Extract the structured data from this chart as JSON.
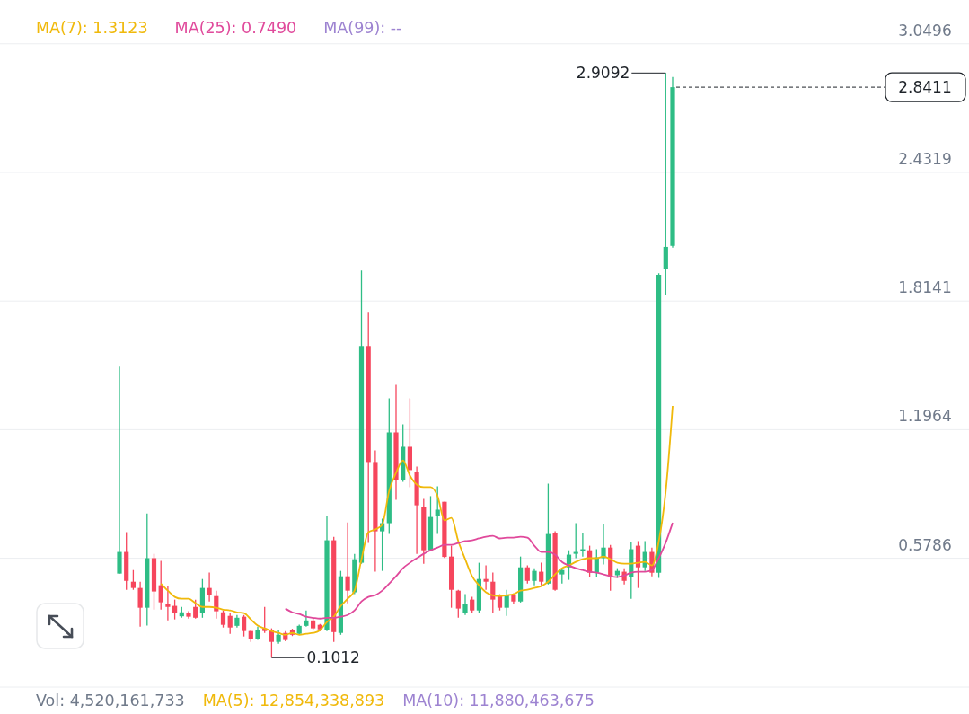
{
  "chart_data": {
    "type": "candlestick",
    "categories": [
      null,
      null,
      null,
      null,
      null,
      null,
      null,
      null,
      null,
      null,
      null,
      null,
      null,
      null,
      null,
      null,
      null,
      null,
      null,
      null,
      null,
      null,
      null,
      null,
      null,
      null,
      null,
      null,
      null,
      null,
      null,
      null,
      null,
      null,
      null,
      null,
      null,
      null,
      null,
      null,
      null,
      null,
      null,
      null,
      null,
      null,
      null,
      null,
      null,
      null,
      null,
      null,
      null,
      null,
      null,
      null,
      null,
      null,
      null,
      null,
      null,
      null,
      null,
      null,
      null,
      null,
      null,
      null,
      null,
      null,
      null,
      null,
      null,
      null,
      null,
      null,
      null,
      null,
      null,
      null,
      null
    ],
    "ohlc": [
      [
        0.505,
        1.499,
        0.505,
        0.609
      ],
      [
        0.609,
        0.704,
        0.427,
        0.47
      ],
      [
        0.466,
        0.522,
        0.427,
        0.436
      ],
      [
        0.436,
        0.466,
        0.25,
        0.341
      ],
      [
        0.341,
        0.794,
        0.255,
        0.579
      ],
      [
        0.579,
        0.6,
        0.332,
        0.419
      ],
      [
        0.449,
        0.566,
        0.332,
        0.367
      ],
      [
        0.358,
        0.445,
        0.28,
        0.345
      ],
      [
        0.35,
        0.38,
        0.285,
        0.315
      ],
      [
        0.3,
        0.345,
        0.293,
        0.319
      ],
      [
        0.315,
        0.324,
        0.289,
        0.298
      ],
      [
        0.345,
        0.38,
        0.289,
        0.293
      ],
      [
        0.315,
        0.479,
        0.293,
        0.436
      ],
      [
        0.436,
        0.51,
        0.371,
        0.401
      ],
      [
        0.397,
        0.423,
        0.289,
        0.324
      ],
      [
        0.319,
        0.328,
        0.246,
        0.259
      ],
      [
        0.302,
        0.315,
        0.216,
        0.246
      ],
      [
        0.254,
        0.306,
        0.246,
        0.293
      ],
      [
        0.298,
        0.306,
        0.203,
        0.229
      ],
      [
        0.229,
        0.233,
        0.177,
        0.19
      ],
      [
        0.19,
        0.25,
        0.186,
        0.233
      ],
      [
        0.242,
        0.345,
        0.22,
        0.229
      ],
      [
        0.233,
        0.242,
        0.1012,
        0.177
      ],
      [
        0.177,
        0.233,
        0.168,
        0.211
      ],
      [
        0.22,
        0.228,
        0.18,
        0.186
      ],
      [
        0.233,
        0.24,
        0.205,
        0.211
      ],
      [
        0.216,
        0.26,
        0.21,
        0.254
      ],
      [
        0.254,
        0.328,
        0.25,
        0.28
      ],
      [
        0.28,
        0.293,
        0.233,
        0.242
      ],
      [
        0.259,
        0.263,
        0.229,
        0.237
      ],
      [
        0.233,
        0.781,
        0.229,
        0.665
      ],
      [
        0.665,
        0.682,
        0.177,
        0.224
      ],
      [
        0.22,
        0.518,
        0.211,
        0.492
      ],
      [
        0.492,
        0.751,
        0.362,
        0.423
      ],
      [
        0.415,
        0.6,
        0.406,
        0.574
      ],
      [
        0.557,
        1.961,
        0.552,
        1.598
      ],
      [
        1.598,
        1.762,
        0.652,
        1.041
      ],
      [
        1.041,
        1.097,
        0.514,
        0.708
      ],
      [
        0.708,
        0.769,
        0.518,
        0.747
      ],
      [
        0.747,
        1.347,
        0.695,
        1.183
      ],
      [
        1.183,
        1.412,
        0.859,
        0.954
      ],
      [
        0.954,
        1.222,
        0.946,
        1.114
      ],
      [
        1.114,
        1.347,
        0.92,
        1.002
      ],
      [
        0.993,
        1.019,
        0.6,
        0.833
      ],
      [
        0.825,
        0.864,
        0.552,
        0.617
      ],
      [
        0.617,
        0.877,
        0.613,
        0.777
      ],
      [
        0.782,
        0.924,
        0.695,
        0.812
      ],
      [
        0.85,
        0.85,
        0.58,
        0.585
      ],
      [
        0.587,
        0.639,
        0.341,
        0.427
      ],
      [
        0.423,
        0.427,
        0.293,
        0.337
      ],
      [
        0.315,
        0.406,
        0.306,
        0.358
      ],
      [
        0.38,
        0.393,
        0.315,
        0.328
      ],
      [
        0.328,
        0.557,
        0.315,
        0.479
      ],
      [
        0.479,
        0.544,
        0.427,
        0.466
      ],
      [
        0.466,
        0.51,
        0.315,
        0.38
      ],
      [
        0.401,
        0.406,
        0.328,
        0.341
      ],
      [
        0.341,
        0.427,
        0.302,
        0.401
      ],
      [
        0.401,
        0.41,
        0.358,
        0.371
      ],
      [
        0.371,
        0.587,
        0.366,
        0.535
      ],
      [
        0.535,
        0.544,
        0.457,
        0.47
      ],
      [
        0.47,
        0.531,
        0.449,
        0.518
      ],
      [
        0.514,
        0.557,
        0.449,
        0.466
      ],
      [
        0.457,
        0.937,
        0.453,
        0.695
      ],
      [
        0.699,
        0.708,
        0.423,
        0.427
      ],
      [
        0.501,
        0.531,
        0.457,
        0.522
      ],
      [
        0.535,
        0.617,
        0.475,
        0.596
      ],
      [
        0.6,
        0.747,
        0.579,
        0.609
      ],
      [
        0.613,
        0.699,
        0.587,
        0.622
      ],
      [
        0.617,
        0.639,
        0.488,
        0.509
      ],
      [
        0.509,
        0.622,
        0.488,
        0.583
      ],
      [
        0.579,
        0.742,
        0.549,
        0.63
      ],
      [
        0.63,
        0.643,
        0.423,
        0.492
      ],
      [
        0.497,
        0.531,
        0.484,
        0.518
      ],
      [
        0.514,
        0.531,
        0.453,
        0.47
      ],
      [
        0.488,
        0.656,
        0.384,
        0.622
      ],
      [
        0.639,
        0.661,
        0.436,
        0.535
      ],
      [
        0.535,
        0.661,
        0.518,
        0.609
      ],
      [
        0.609,
        0.63,
        0.492,
        0.509
      ],
      [
        0.509,
        1.948,
        0.484,
        1.94
      ],
      [
        1.969,
        2.9092,
        1.842,
        2.074
      ],
      [
        2.079,
        2.89,
        2.07,
        2.8411
      ]
    ],
    "colors": [
      "#2ebd85",
      "#f6465d",
      "#f6465d",
      "#f6465d",
      "#2ebd85",
      "#f6465d",
      "#f6465d",
      "#f6465d",
      "#f6465d",
      "#2ebd85",
      "#f6465d",
      "#f6465d",
      "#2ebd85",
      "#f6465d",
      "#f6465d",
      "#f6465d",
      "#f6465d",
      "#2ebd85",
      "#f6465d",
      "#f6465d",
      "#2ebd85",
      "#f6465d",
      "#f6465d",
      "#2ebd85",
      "#f6465d",
      "#f6465d",
      "#2ebd85",
      "#2ebd85",
      "#f6465d",
      "#f6465d",
      "#2ebd85",
      "#f6465d",
      "#2ebd85",
      "#f6465d",
      "#2ebd85",
      "#2ebd85",
      "#f6465d",
      "#f6465d",
      "#2ebd85",
      "#2ebd85",
      "#f6465d",
      "#2ebd85",
      "#f6465d",
      "#f6465d",
      "#f6465d",
      "#2ebd85",
      "#2ebd85",
      "#f6465d",
      "#f6465d",
      "#f6465d",
      "#2ebd85",
      "#f6465d",
      "#2ebd85",
      "#f6465d",
      "#f6465d",
      "#f6465d",
      "#2ebd85",
      "#f6465d",
      "#2ebd85",
      "#f6465d",
      "#2ebd85",
      "#f6465d",
      "#2ebd85",
      "#f6465d",
      "#2ebd85",
      "#2ebd85",
      "#2ebd85",
      "#2ebd85",
      "#f6465d",
      "#2ebd85",
      "#2ebd85",
      "#f6465d",
      "#2ebd85",
      "#f6465d",
      "#2ebd85",
      "#f6465d",
      "#2ebd85",
      "#f6465d",
      "#2ebd85",
      "#2ebd85",
      "#2ebd85"
    ],
    "series": [
      {
        "name": "MA(7): 1.3123",
        "type": "line",
        "color": "#f0b90b",
        "values": [
          null,
          null,
          null,
          null,
          null,
          null,
          0.457,
          0.423,
          0.393,
          0.384,
          0.384,
          0.363,
          0.345,
          0.345,
          0.341,
          0.332,
          0.328,
          0.319,
          0.315,
          0.285,
          0.255,
          0.242,
          0.229,
          0.22,
          0.211,
          0.22,
          0.211,
          0.216,
          0.22,
          0.233,
          0.272,
          0.298,
          0.349,
          0.384,
          0.423,
          0.574,
          0.704,
          0.717,
          0.74,
          0.902,
          0.989,
          1.049,
          0.976,
          0.933,
          0.92,
          0.92,
          0.877,
          0.76,
          0.773,
          0.661,
          0.574,
          0.492,
          0.449,
          0.415,
          0.401,
          0.397,
          0.401,
          0.406,
          0.423,
          0.427,
          0.436,
          0.445,
          0.466,
          0.501,
          0.531,
          0.544,
          0.561,
          0.574,
          0.579,
          0.579,
          0.587,
          0.574,
          0.557,
          0.553,
          0.553,
          0.557,
          0.561,
          0.544,
          0.661,
          0.9,
          1.31
        ]
      },
      {
        "name": "MA(25): 0.7490",
        "type": "line",
        "color": "#e0499b",
        "values": [
          null,
          null,
          null,
          null,
          null,
          null,
          null,
          null,
          null,
          null,
          null,
          null,
          null,
          null,
          null,
          null,
          null,
          null,
          null,
          null,
          null,
          null,
          null,
          null,
          0.337,
          0.319,
          0.311,
          0.298,
          0.293,
          0.289,
          0.293,
          0.293,
          0.298,
          0.306,
          0.328,
          0.371,
          0.393,
          0.401,
          0.423,
          0.457,
          0.492,
          0.531,
          0.557,
          0.579,
          0.6,
          0.617,
          0.63,
          0.643,
          0.643,
          0.652,
          0.661,
          0.665,
          0.674,
          0.682,
          0.686,
          0.674,
          0.678,
          0.678,
          0.682,
          0.678,
          0.639,
          0.609,
          0.609,
          0.596,
          0.561,
          0.544,
          0.531,
          0.522,
          0.514,
          0.509,
          0.501,
          0.492,
          0.488,
          0.496,
          0.509,
          0.514,
          0.514,
          0.522,
          0.58,
          0.654,
          0.749
        ]
      }
    ],
    "ylim": [
      -0.04,
      3.26
    ],
    "yticks": [
      0.5786,
      1.1964,
      1.8141,
      2.4319,
      3.0496
    ],
    "grid": "y",
    "legend": "top",
    "ref_lines": [
      {
        "axis": "y",
        "value": 2.8411,
        "label": "2.8411",
        "line_style": "dashed"
      }
    ],
    "annotations": [
      "2.9092",
      "0.1012",
      "MA(99): --",
      "Vol: 4,520,161,733",
      "MA(5): 12,854,338,893",
      "MA(10): 11,880,463,675"
    ]
  }
}
